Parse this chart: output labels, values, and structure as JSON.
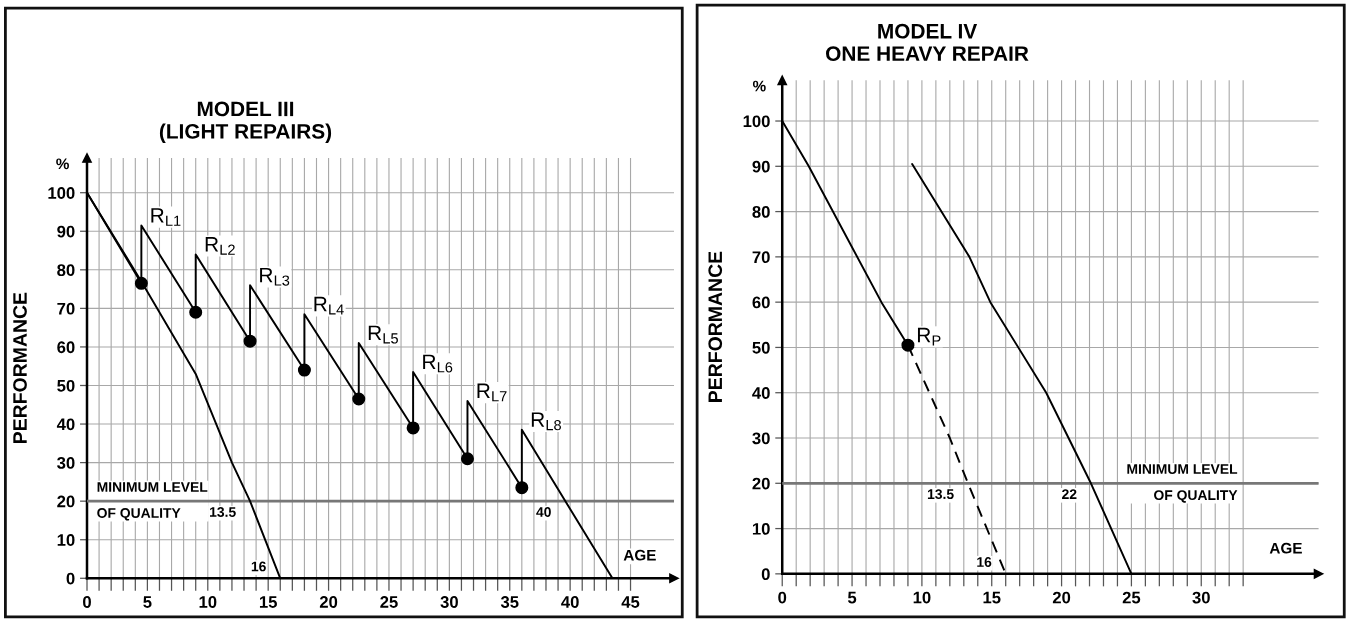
{
  "chart_data": [
    {
      "type": "line",
      "title": "MODEL III\n(LIGHT REPAIRS)",
      "xlabel": "AGE",
      "ylabel": "PERFORMANCE",
      "xlim": [
        0,
        48.6
      ],
      "ylim": [
        0,
        109
      ],
      "xticks": [
        0,
        {
          "value": 1,
          "label": null
        },
        {
          "value": 2,
          "label": null
        },
        {
          "value": 3,
          "label": null
        },
        {
          "value": 4,
          "label": null
        },
        5,
        {
          "value": 6,
          "label": null
        },
        {
          "value": 7,
          "label": null
        },
        {
          "value": 8,
          "label": null
        },
        {
          "value": 9,
          "label": null
        },
        10,
        {
          "value": 11,
          "label": null
        },
        {
          "value": 12,
          "label": null
        },
        {
          "value": 13,
          "label": null
        },
        {
          "value": 14,
          "label": null
        },
        15,
        {
          "value": 16,
          "label": null
        },
        {
          "value": 17,
          "label": null
        },
        {
          "value": 18,
          "label": null
        },
        {
          "value": 19,
          "label": null
        },
        20,
        {
          "value": 21,
          "label": null
        },
        {
          "value": 22,
          "label": null
        },
        {
          "value": 23,
          "label": null
        },
        {
          "value": 24,
          "label": null
        },
        25,
        {
          "value": 26,
          "label": null
        },
        {
          "value": 27,
          "label": null
        },
        {
          "value": 28,
          "label": null
        },
        {
          "value": 29,
          "label": null
        },
        30,
        {
          "value": 31,
          "label": null
        },
        {
          "value": 32,
          "label": null
        },
        {
          "value": 33,
          "label": null
        },
        {
          "value": 34,
          "label": null
        },
        35,
        {
          "value": 36,
          "label": null
        },
        {
          "value": 37,
          "label": null
        },
        {
          "value": 38,
          "label": null
        },
        {
          "value": 39,
          "label": null
        },
        40,
        {
          "value": 41,
          "label": null
        },
        {
          "value": 42,
          "label": null
        },
        {
          "value": 43,
          "label": null
        },
        {
          "value": 44,
          "label": null
        },
        45
      ],
      "yticks": [
        0,
        10,
        20,
        30,
        40,
        50,
        60,
        70,
        80,
        90,
        100
      ],
      "grid": true,
      "series": [
        {
          "color": "#000000",
          "x": [
            0,
            4.5,
            9,
            12,
            13.5,
            16
          ],
          "values": [
            100,
            77,
            53,
            30,
            20,
            0
          ]
        },
        {
          "color": "#000000",
          "x": [
            0,
            4.5,
            4.5,
            9,
            9,
            13.5,
            13.5,
            18,
            18,
            22.5,
            22.5,
            27,
            27,
            31.5,
            31.5,
            36,
            36,
            43.5
          ],
          "values": [
            100,
            76.5,
            91.5,
            69,
            84,
            61.5,
            76,
            54,
            68.5,
            46.5,
            61,
            39,
            53.5,
            31,
            46,
            23.5,
            38.5,
            0
          ]
        },
        {
          "type": "scatter",
          "color": "#000000",
          "x": [
            4.5,
            9,
            13.5,
            18,
            22.5,
            27,
            31.5,
            36
          ],
          "values": [
            76.5,
            69,
            61.5,
            54,
            46.5,
            39,
            31,
            23.5
          ]
        }
      ],
      "ref_lines": [
        {
          "axis": "y",
          "value": 20,
          "label": "MINIMUM LEVEL\nOF QUALITY",
          "color": "#777777"
        }
      ],
      "annotations": [
        "%",
        {
          "text": "R$_{L1}$",
          "x": 4.5,
          "y": 91.5
        },
        {
          "text": "R$_{L2}$",
          "x": 9,
          "y": 84
        },
        {
          "text": "R$_{L3}$",
          "x": 13.5,
          "y": 76
        },
        {
          "text": "R$_{L4}$",
          "x": 18,
          "y": 68.5
        },
        {
          "text": "R$_{L5}$",
          "x": 22.5,
          "y": 61
        },
        {
          "text": "R$_{L6}$",
          "x": 27,
          "y": 53.5
        },
        {
          "text": "R$_{L7}$",
          "x": 31.5,
          "y": 46
        },
        {
          "text": "R$_{L8}$",
          "x": 36,
          "y": 38.5
        },
        {
          "text": "13.5",
          "x": 13.5,
          "y": 20
        },
        {
          "text": "16",
          "x": 16,
          "y": 0
        },
        {
          "text": "40",
          "x": 39.6,
          "y": 20
        }
      ]
    },
    {
      "type": "line",
      "title": "MODEL IV\nONE HEAVY REPAIR",
      "xlabel": "AGE",
      "ylabel": "PERFORMANCE",
      "xlim": [
        0,
        38.4
      ],
      "ylim": [
        0,
        109
      ],
      "xticks": [
        0,
        {
          "value": 1,
          "label": null
        },
        {
          "value": 2,
          "label": null
        },
        {
          "value": 3,
          "label": null
        },
        {
          "value": 4,
          "label": null
        },
        5,
        {
          "value": 6,
          "label": null
        },
        {
          "value": 7,
          "label": null
        },
        {
          "value": 8,
          "label": null
        },
        {
          "value": 9,
          "label": null
        },
        10,
        {
          "value": 11,
          "label": null
        },
        {
          "value": 12,
          "label": null
        },
        {
          "value": 13,
          "label": null
        },
        {
          "value": 14,
          "label": null
        },
        15,
        {
          "value": 16,
          "label": null
        },
        {
          "value": 17,
          "label": null
        },
        {
          "value": 18,
          "label": null
        },
        {
          "value": 19,
          "label": null
        },
        20,
        {
          "value": 21,
          "label": null
        },
        {
          "value": 22,
          "label": null
        },
        {
          "value": 23,
          "label": null
        },
        {
          "value": 24,
          "label": null
        },
        25,
        {
          "value": 26,
          "label": null
        },
        {
          "value": 27,
          "label": null
        },
        {
          "value": 28,
          "label": null
        },
        {
          "value": 29,
          "label": null
        },
        30,
        {
          "value": 31,
          "label": null
        },
        {
          "value": 32,
          "label": null
        },
        {
          "value": 33,
          "label": null
        }
      ],
      "yticks": [
        0,
        10,
        20,
        30,
        40,
        50,
        60,
        70,
        80,
        90,
        100
      ],
      "grid": true,
      "series": [
        {
          "color": "#000000",
          "x": [
            0,
            1.9,
            7.1,
            9
          ],
          "values": [
            100,
            90,
            60,
            50.5
          ]
        },
        {
          "color": "#000000",
          "line_style": "dashed",
          "x": [
            9,
            12,
            13.3,
            16
          ],
          "values": [
            50.5,
            30,
            20,
            0
          ]
        },
        {
          "color": "#000000",
          "x": [
            9.3,
            13.4,
            14.9,
            18.9,
            22.1,
            25
          ],
          "values": [
            90.5,
            70,
            60,
            40,
            20,
            0
          ]
        },
        {
          "type": "scatter",
          "color": "#000000",
          "x": [
            9
          ],
          "values": [
            50.5
          ]
        }
      ],
      "ref_lines": [
        {
          "axis": "y",
          "value": 20,
          "label": "MINIMUM LEVEL\nOF QUALITY",
          "color": "#777777"
        }
      ],
      "annotations": [
        "%",
        {
          "text": "R$_{P}$",
          "x": 9,
          "y": 50.5
        },
        {
          "text": "13.5",
          "x": 13.3,
          "y": 20
        },
        {
          "text": "16",
          "x": 16,
          "y": 0
        },
        {
          "text": "22",
          "x": 22.1,
          "y": 20
        }
      ]
    }
  ]
}
